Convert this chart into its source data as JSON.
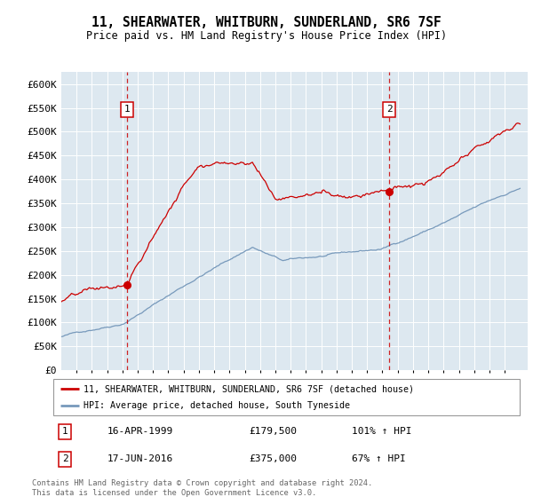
{
  "title": "11, SHEARWATER, WHITBURN, SUNDERLAND, SR6 7SF",
  "subtitle": "Price paid vs. HM Land Registry's House Price Index (HPI)",
  "legend_line1": "11, SHEARWATER, WHITBURN, SUNDERLAND, SR6 7SF (detached house)",
  "legend_line2": "HPI: Average price, detached house, South Tyneside",
  "footnote": "Contains HM Land Registry data © Crown copyright and database right 2024.\nThis data is licensed under the Open Government Licence v3.0.",
  "red_color": "#cc0000",
  "blue_color": "#7799bb",
  "plot_bg_color": "#dde8f0",
  "ann1_year": 1999.29,
  "ann1_price": 179500,
  "ann1_date": "16-APR-1999",
  "ann1_pct": "101% ↑ HPI",
  "ann2_year": 2016.46,
  "ann2_price": 375000,
  "ann2_date": "17-JUN-2016",
  "ann2_pct": "67% ↑ HPI",
  "ylim": [
    0,
    625000
  ],
  "xlim": [
    1995,
    2025.5
  ],
  "yticks": [
    0,
    50000,
    100000,
    150000,
    200000,
    250000,
    300000,
    350000,
    400000,
    450000,
    500000,
    550000,
    600000
  ],
  "ytick_labels": [
    "£0",
    "£50K",
    "£100K",
    "£150K",
    "£200K",
    "£250K",
    "£300K",
    "£350K",
    "£400K",
    "£450K",
    "£500K",
    "£550K",
    "£600K"
  ]
}
